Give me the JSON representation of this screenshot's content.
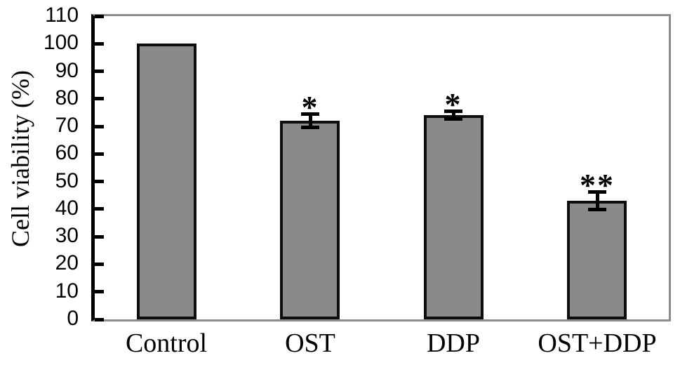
{
  "chart_data": {
    "type": "bar",
    "categories": [
      "Control",
      "OST",
      "DDP",
      "OST+DDP"
    ],
    "values": [
      100,
      72,
      74,
      43
    ],
    "errors": [
      0,
      2.5,
      1.5,
      3.3
    ],
    "significance": [
      "",
      "*",
      "*",
      "**"
    ],
    "title": "",
    "xlabel": "",
    "ylabel": "Cell viability (%)",
    "ylim": [
      0,
      110
    ],
    "yticks": [
      0,
      10,
      20,
      30,
      40,
      50,
      60,
      70,
      80,
      90,
      100,
      110
    ],
    "grid": false,
    "legend": false,
    "bar_fill": "#8a8a8a",
    "bar_border": "#0d0d0d",
    "axis_spine_color": "#000000",
    "frame_color": "#8c8c8c",
    "text_color": "#000000"
  }
}
